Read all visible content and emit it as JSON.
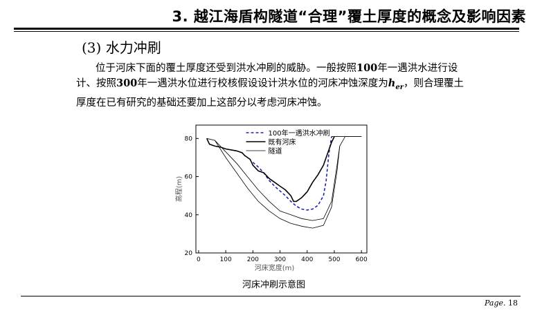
{
  "slide": {
    "title": "3. 越江海盾构隧道“合理”覆土厚度的概念及影响因素",
    "section_number": "(3)",
    "section_title": "水力冲刷",
    "paragraph": {
      "part1": "位于河床下面的覆土厚度还受到洪水冲刷的威胁。一般按照",
      "bold1": "100",
      "part2": "年一遇洪水进行设计、按照",
      "bold2": "300",
      "part3": "年一遇洪水位进行校核假设设计洪水位的河床冲蚀深度为",
      "her_main": "h",
      "her_sub": "er",
      "part4": "，则合理覆土厚度在已有研究的基础还要加上这部分以考虑河床冲蚀。"
    },
    "figure_caption": "河床冲刷示意图",
    "page_label": "Page.",
    "page_number": "18"
  },
  "chart_data": {
    "type": "line",
    "xlabel": "河床宽度(m)",
    "ylabel": "高程(m)",
    "xlim": [
      -10,
      620
    ],
    "ylim": [
      20,
      87
    ],
    "xticks": [
      "0",
      "100",
      "200",
      "300",
      "400",
      "500",
      "600"
    ],
    "yticks": [
      "20",
      "40",
      "60",
      "80"
    ],
    "legend_position": "top-center",
    "series": [
      {
        "name": "100年一遇洪水冲刷",
        "style": "dashed",
        "color": "#1f1fb4",
        "x": [
          200,
          220,
          240,
          260,
          280,
          300,
          320,
          340,
          360,
          380,
          400,
          420,
          440,
          460,
          470,
          480,
          490
        ],
        "y": [
          67.5,
          65,
          62,
          58,
          55,
          52.5,
          50,
          47,
          44.5,
          43,
          42.5,
          43,
          45,
          50,
          58,
          72,
          81
        ]
      },
      {
        "name": "既有河床",
        "style": "solid-thick",
        "color": "#000000",
        "x": [
          30,
          40,
          60,
          80,
          100,
          120,
          140,
          160,
          170,
          180,
          190,
          200,
          220,
          240,
          260,
          280,
          300,
          310,
          320,
          340,
          350,
          360,
          380,
          400,
          420,
          440,
          460,
          470,
          480,
          490,
          500
        ],
        "y": [
          80,
          77,
          76,
          75.5,
          74.5,
          74,
          73.5,
          72.5,
          71,
          70,
          69,
          66,
          63,
          62,
          59,
          57,
          55,
          54,
          53,
          50,
          47,
          47,
          49,
          52,
          57,
          61,
          66,
          70,
          74,
          78,
          81
        ]
      },
      {
        "name": "隧道",
        "style": "solid-thin",
        "color": "#000000",
        "x": [
          30,
          60,
          100,
          140,
          180,
          220,
          260,
          300,
          340,
          380,
          420,
          460,
          490,
          510,
          520,
          540,
          600
        ],
        "y": [
          80,
          79,
          73,
          67,
          60,
          53,
          47,
          42,
          40,
          38,
          37,
          38,
          47,
          66,
          76,
          81,
          81
        ]
      },
      {
        "name": "",
        "style": "solid-thin",
        "color": "#000000",
        "x": [
          60,
          100,
          140,
          180,
          220,
          260,
          300,
          340,
          380,
          420,
          460,
          490,
          510,
          520
        ],
        "y": [
          79,
          70,
          62,
          54,
          47,
          42,
          38,
          35.5,
          34,
          33,
          34.5,
          44,
          63,
          76
        ]
      }
    ],
    "top_bank": {
      "x": [
        490,
        600
      ],
      "y": 81
    }
  }
}
